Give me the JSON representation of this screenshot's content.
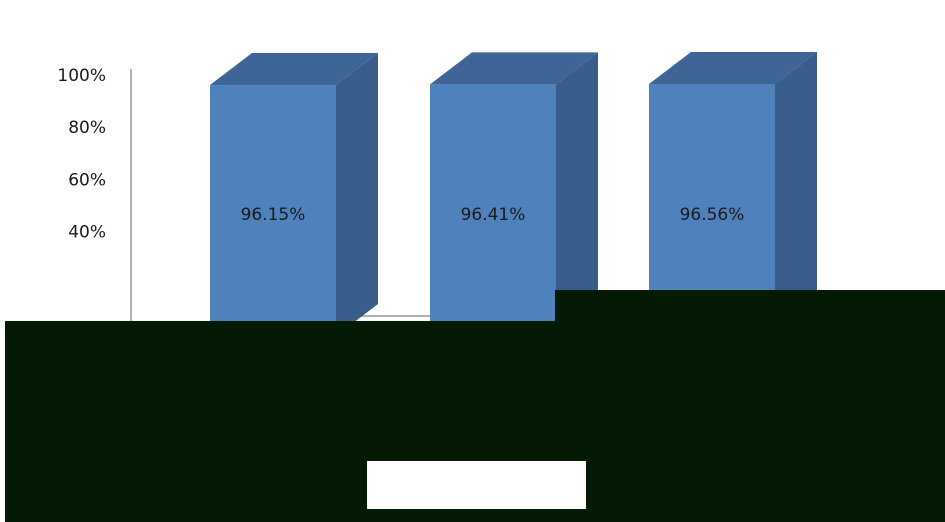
{
  "chart_data": {
    "type": "bar",
    "style": "3d-column",
    "categories": [
      "",
      "",
      ""
    ],
    "series": [
      {
        "values": [
          96.15,
          96.41,
          96.56
        ],
        "color": "#4f81bd"
      }
    ],
    "data_labels": [
      "96.15%",
      "96.41%",
      "96.56%"
    ],
    "y_ticks": [
      {
        "value": 40,
        "label": "40%"
      },
      {
        "value": 60,
        "label": "60%"
      },
      {
        "value": 80,
        "label": "80%"
      },
      {
        "value": 100,
        "label": "100%"
      }
    ],
    "ylim": [
      0,
      100
    ],
    "title": "",
    "xlabel": "",
    "ylabel": "",
    "grid": false,
    "legend": "none"
  },
  "colors": {
    "bar_front": "#4f81bd",
    "bar_side": "#385d8a",
    "bar_top": "#3e6596",
    "overlay": "#051a05"
  }
}
